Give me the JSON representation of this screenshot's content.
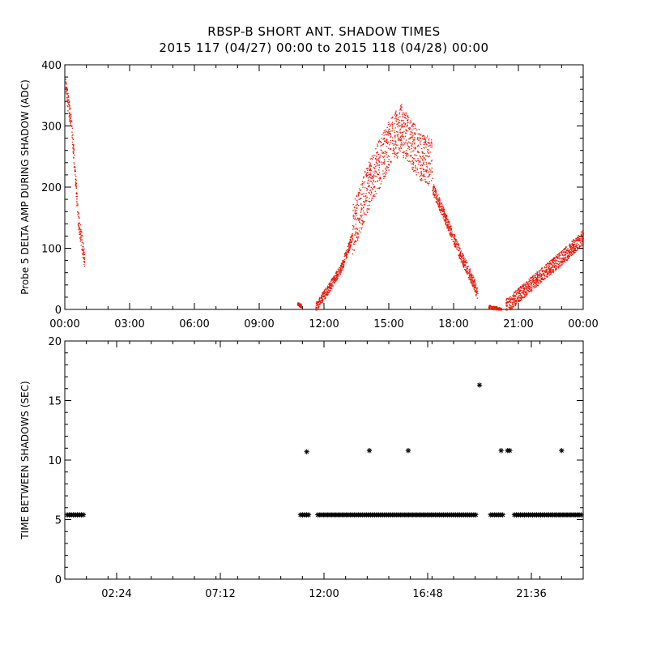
{
  "header": {
    "title": "RBSP-B SHORT ANT. SHADOW TIMES",
    "subtitle": "2015 117 (04/27) 00:00 to 2015 118 (04/28) 00:00"
  },
  "colors": {
    "top_points": "#e8190a",
    "bottom_points": "#000000"
  },
  "chart_data": [
    {
      "type": "scatter",
      "ylabel": "Probe 5 DELTA AMP DURING SHADOW (ADC)",
      "xlim": [
        0,
        24
      ],
      "ylim": [
        0,
        400
      ],
      "x_unit": "hours",
      "xticks": [
        0,
        3,
        6,
        9,
        12,
        15,
        18,
        21,
        24
      ],
      "xtick_labels": [
        "00:00",
        "03:00",
        "06:00",
        "09:00",
        "12:00",
        "15:00",
        "18:00",
        "21:00",
        "00:00"
      ],
      "yticks": [
        0,
        100,
        200,
        300,
        400
      ],
      "ytick_labels": [
        "0",
        "100",
        "200",
        "300",
        "400"
      ],
      "marker": "dot",
      "series_envelope": [
        {
          "x": [
            0.0,
            0.3,
            0.6,
            0.9
          ],
          "y": [
            370,
            300,
            150,
            80
          ],
          "spread": 15
        },
        {
          "x": [
            10.75,
            10.95
          ],
          "y": [
            10,
            6
          ],
          "spread": 3
        },
        {
          "x": [
            11.6,
            12.2,
            12.8,
            13.3
          ],
          "y": [
            5,
            35,
            70,
            120
          ],
          "spread": 8
        },
        {
          "x": [
            13.3,
            14.0,
            15.0,
            15.6
          ],
          "y": [
            130,
            200,
            270,
            300
          ],
          "spread": 40
        },
        {
          "x": [
            15.6,
            16.5,
            17.0
          ],
          "y": [
            290,
            250,
            240
          ],
          "spread": 40
        },
        {
          "x": [
            17.0,
            17.6,
            18.3,
            18.9,
            19.1
          ],
          "y": [
            200,
            150,
            90,
            45,
            25
          ],
          "spread": 10
        },
        {
          "x": [
            19.6,
            20.2
          ],
          "y": [
            5,
            0
          ],
          "spread": 3
        },
        {
          "x": [
            20.4,
            21.5,
            22.5,
            23.3,
            24.0
          ],
          "y": [
            5,
            40,
            70,
            95,
            120
          ],
          "spread": 12
        }
      ]
    },
    {
      "type": "scatter",
      "ylabel": "TIME BETWEEN SHADOWS (SEC)",
      "xlim": [
        0,
        24
      ],
      "ylim": [
        0,
        20
      ],
      "x_unit": "hours",
      "xticks": [
        2.4,
        7.2,
        12.0,
        16.8,
        21.6
      ],
      "xtick_labels": [
        "02:24",
        "07:12",
        "12:00",
        "16:48",
        "21:36"
      ],
      "yticks": [
        0,
        5,
        10,
        15,
        20
      ],
      "ytick_labels": [
        "0",
        "5",
        "10",
        "15",
        "20"
      ],
      "marker": "asterisk",
      "baseline_value": 5.4,
      "baseline_ranges": [
        [
          0.0,
          1.0
        ],
        [
          10.8,
          11.4
        ],
        [
          11.6,
          19.1
        ],
        [
          19.6,
          20.4
        ],
        [
          20.7,
          24.0
        ]
      ],
      "outliers": [
        {
          "x": 11.2,
          "y": 10.7
        },
        {
          "x": 14.1,
          "y": 10.8
        },
        {
          "x": 15.9,
          "y": 10.8
        },
        {
          "x": 19.2,
          "y": 16.3
        },
        {
          "x": 20.2,
          "y": 10.8
        },
        {
          "x": 20.5,
          "y": 10.8
        },
        {
          "x": 20.6,
          "y": 10.8
        },
        {
          "x": 23.0,
          "y": 10.8
        }
      ]
    }
  ]
}
